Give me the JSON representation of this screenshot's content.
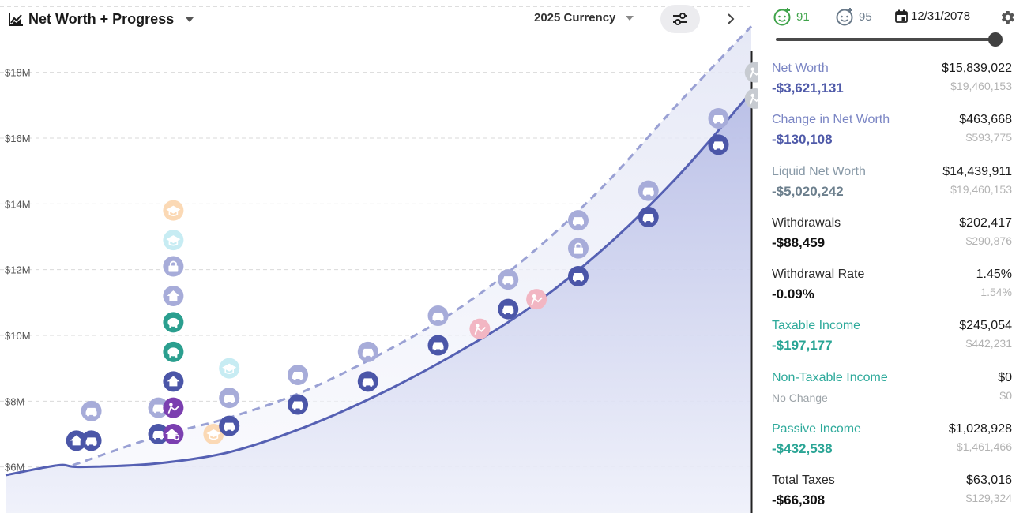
{
  "header": {
    "title": "Net Worth + Progress",
    "currency": "2025 Currency",
    "age_primary": "91",
    "age_secondary": "95",
    "date": "12/31/2078",
    "timeline_progress": 1.0
  },
  "colors": {
    "brand_blue": "#5560b3",
    "dash_blue": "#9aa1d4",
    "teal": "#2eaa9b",
    "green": "#3fa34a",
    "muted_blue_label": "#7b86c4",
    "gray_label": "#8798a6"
  },
  "chart_data": {
    "type": "area",
    "y_tick_labels": [
      "$18M",
      "$16M",
      "$14M",
      "$12M",
      "$10M",
      "$8M",
      "$6M"
    ],
    "y_tick_values": [
      18,
      16,
      14,
      12,
      10,
      8,
      6
    ],
    "ylim": [
      4.6,
      20.2
    ],
    "xlim": [
      0,
      100
    ],
    "grid": true,
    "series": [
      {
        "style": "solid-area",
        "x": [
          0,
          7,
          10,
          20,
          30,
          40,
          50,
          60,
          70,
          80,
          90,
          100
        ],
        "y": [
          5.75,
          6.05,
          6.0,
          6.1,
          6.45,
          7.2,
          8.2,
          9.4,
          10.8,
          12.6,
          14.8,
          17.4
        ]
      },
      {
        "style": "dashed",
        "x": [
          9,
          20,
          30,
          40,
          50,
          60,
          70,
          80,
          90,
          100
        ],
        "y": [
          6.05,
          6.9,
          7.5,
          8.3,
          9.4,
          10.7,
          12.4,
          14.5,
          17.0,
          19.4
        ]
      }
    ],
    "events": [
      {
        "x": 9.5,
        "y": 6.8,
        "icon": "home-icon",
        "state": "active"
      },
      {
        "x": 11.5,
        "y": 6.8,
        "icon": "car-icon",
        "state": "active"
      },
      {
        "x": 11.5,
        "y": 7.7,
        "icon": "car-icon",
        "state": "future"
      },
      {
        "x": 20.5,
        "y": 7.0,
        "icon": "car-icon",
        "state": "active"
      },
      {
        "x": 22.5,
        "y": 7.0,
        "icon": "house-search-icon",
        "state": "purple"
      },
      {
        "x": 20.5,
        "y": 7.8,
        "icon": "car-icon",
        "state": "future"
      },
      {
        "x": 22.5,
        "y": 7.8,
        "icon": "event-icon",
        "state": "purple"
      },
      {
        "x": 22.5,
        "y": 8.6,
        "icon": "home-icon",
        "state": "active"
      },
      {
        "x": 22.5,
        "y": 9.5,
        "icon": "piggy-icon",
        "state": "teal"
      },
      {
        "x": 22.5,
        "y": 10.4,
        "icon": "piggy-icon",
        "state": "teal"
      },
      {
        "x": 22.5,
        "y": 11.2,
        "icon": "home-icon",
        "state": "future"
      },
      {
        "x": 22.5,
        "y": 12.1,
        "icon": "lock-icon",
        "state": "future"
      },
      {
        "x": 22.5,
        "y": 12.9,
        "icon": "school-icon",
        "state": "light-blue"
      },
      {
        "x": 22.5,
        "y": 13.8,
        "icon": "school-icon",
        "state": "peach"
      },
      {
        "x": 27.9,
        "y": 7.0,
        "icon": "school-icon",
        "state": "peach"
      },
      {
        "x": 30.0,
        "y": 7.25,
        "icon": "car-icon",
        "state": "active"
      },
      {
        "x": 30.0,
        "y": 8.1,
        "icon": "car-icon",
        "state": "future"
      },
      {
        "x": 30.0,
        "y": 9.0,
        "icon": "school-icon",
        "state": "light-blue"
      },
      {
        "x": 39.2,
        "y": 7.9,
        "icon": "car-icon",
        "state": "active"
      },
      {
        "x": 39.2,
        "y": 8.8,
        "icon": "car-icon",
        "state": "future"
      },
      {
        "x": 48.6,
        "y": 8.6,
        "icon": "car-icon",
        "state": "active"
      },
      {
        "x": 48.6,
        "y": 9.5,
        "icon": "car-icon",
        "state": "future"
      },
      {
        "x": 58.0,
        "y": 9.7,
        "icon": "car-icon",
        "state": "active"
      },
      {
        "x": 58.0,
        "y": 10.6,
        "icon": "car-icon",
        "state": "future"
      },
      {
        "x": 63.6,
        "y": 10.2,
        "icon": "event-icon",
        "state": "pink"
      },
      {
        "x": 67.4,
        "y": 10.8,
        "icon": "car-icon",
        "state": "active"
      },
      {
        "x": 67.4,
        "y": 11.7,
        "icon": "car-icon",
        "state": "future"
      },
      {
        "x": 71.2,
        "y": 11.1,
        "icon": "event-icon",
        "state": "pink"
      },
      {
        "x": 76.8,
        "y": 11.8,
        "icon": "car-icon",
        "state": "active"
      },
      {
        "x": 76.8,
        "y": 12.65,
        "icon": "lock-icon",
        "state": "future"
      },
      {
        "x": 76.8,
        "y": 13.5,
        "icon": "car-icon",
        "state": "future"
      },
      {
        "x": 86.2,
        "y": 13.6,
        "icon": "car-icon",
        "state": "active"
      },
      {
        "x": 86.2,
        "y": 14.4,
        "icon": "car-icon",
        "state": "future"
      },
      {
        "x": 95.6,
        "y": 15.8,
        "icon": "car-icon",
        "state": "active"
      },
      {
        "x": 95.6,
        "y": 16.6,
        "icon": "car-icon",
        "state": "future"
      },
      {
        "x": 100.5,
        "y": 17.2,
        "icon": "event-icon",
        "state": "gray"
      },
      {
        "x": 100.5,
        "y": 18.0,
        "icon": "event-icon",
        "state": "gray"
      }
    ]
  },
  "stats": [
    {
      "label": "Net Worth",
      "value": "$15,839,022",
      "change": "-$3,621,131",
      "prev": "$19,460,153",
      "label_color": "#7b86c4",
      "change_color": "#4f5aa9"
    },
    {
      "label": "Change in Net Worth",
      "value": "$463,668",
      "change": "-$130,108",
      "prev": "$593,775",
      "label_color": "#7b86c4",
      "change_color": "#4f5aa9"
    },
    {
      "label": "Liquid Net Worth",
      "value": "$14,439,911",
      "change": "-$5,020,242",
      "prev": "$19,460,153",
      "label_color": "#8798a6",
      "change_color": "#6c7f8d"
    },
    {
      "label": "Withdrawals",
      "value": "$202,417",
      "change": "-$88,459",
      "prev": "$290,876",
      "label_color": "#2a2a2a",
      "change_color": "#111111"
    },
    {
      "label": "Withdrawal Rate",
      "value": "1.45%",
      "change": "-0.09%",
      "prev": "1.54%",
      "label_color": "#2a2a2a",
      "change_color": "#111111"
    },
    {
      "label": "Taxable Income",
      "value": "$245,054",
      "change": "-$197,177",
      "prev": "$442,231",
      "label_color": "#2eaa9b",
      "change_color": "#2aa595"
    },
    {
      "label": "Non-Taxable Income",
      "value": "$0",
      "change": "No Change",
      "prev": "$0",
      "label_color": "#2eaa9b",
      "change_color": "#9ca3a8",
      "small": true
    },
    {
      "label": "Passive Income",
      "value": "$1,028,928",
      "change": "-$432,538",
      "prev": "$1,461,466",
      "label_color": "#2eaa9b",
      "change_color": "#2aa595"
    },
    {
      "label": "Total Taxes",
      "value": "$63,016",
      "change": "-$66,308",
      "prev": "$129,324",
      "label_color": "#2a2a2a",
      "change_color": "#111111"
    }
  ]
}
